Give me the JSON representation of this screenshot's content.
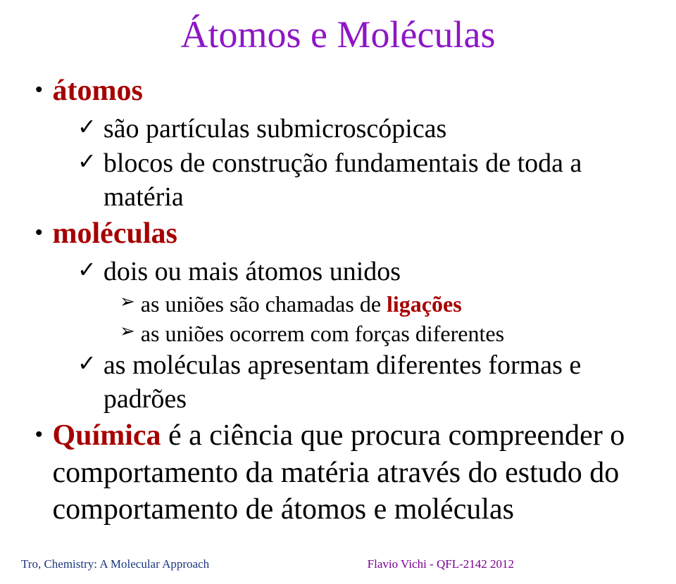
{
  "colors": {
    "title": "#8d16c6",
    "black": "#000000",
    "darkRed": "#a60000",
    "footerLeft": "#1a3680",
    "footerRight": "#7a0093"
  },
  "fonts": {
    "title_pt": 54,
    "b1_pt": 42,
    "b2_pt": 38,
    "b3_pt": 32,
    "footer_pt": 17
  },
  "glyphs": {
    "dot": "•",
    "tick": "✓",
    "arrow": "➢"
  },
  "title": "Átomos e Moléculas",
  "items": [
    {
      "level": 1,
      "segments": [
        {
          "text": "átomos",
          "color": "#a60000",
          "bold": true
        }
      ]
    },
    {
      "level": 2,
      "segments": [
        {
          "text": "são partículas submicroscópicas",
          "color": "#000000",
          "bold": false
        }
      ]
    },
    {
      "level": 2,
      "segments": [
        {
          "text": "blocos de construção fundamentais de toda a matéria",
          "color": "#000000",
          "bold": false
        }
      ]
    },
    {
      "level": 1,
      "segments": [
        {
          "text": "moléculas",
          "color": "#a60000",
          "bold": true
        }
      ]
    },
    {
      "level": 2,
      "segments": [
        {
          "text": "dois ou mais átomos unidos",
          "color": "#000000",
          "bold": false
        }
      ]
    },
    {
      "level": 3,
      "segments": [
        {
          "text": "as uniões são chamadas de ",
          "color": "#000000",
          "bold": false
        },
        {
          "text": "ligações",
          "color": "#a60000",
          "bold": true
        }
      ]
    },
    {
      "level": 3,
      "segments": [
        {
          "text": "as uniões ocorrem com forças diferentes",
          "color": "#000000",
          "bold": false
        }
      ]
    },
    {
      "level": 2,
      "segments": [
        {
          "text": "as moléculas apresentam diferentes formas e padrões",
          "color": "#000000",
          "bold": false
        }
      ]
    },
    {
      "level": 1,
      "segments": [
        {
          "text": "Química",
          "color": "#a60000",
          "bold": true
        },
        {
          "text": " é a ciência que procura compreender o comportamento da matéria através do estudo do comportamento de átomos e moléculas",
          "color": "#000000",
          "bold": false
        }
      ]
    }
  ],
  "footer": {
    "left": "Tro, Chemistry: A Molecular Approach",
    "right": "Flavio Vichi - QFL-2142 2012"
  }
}
